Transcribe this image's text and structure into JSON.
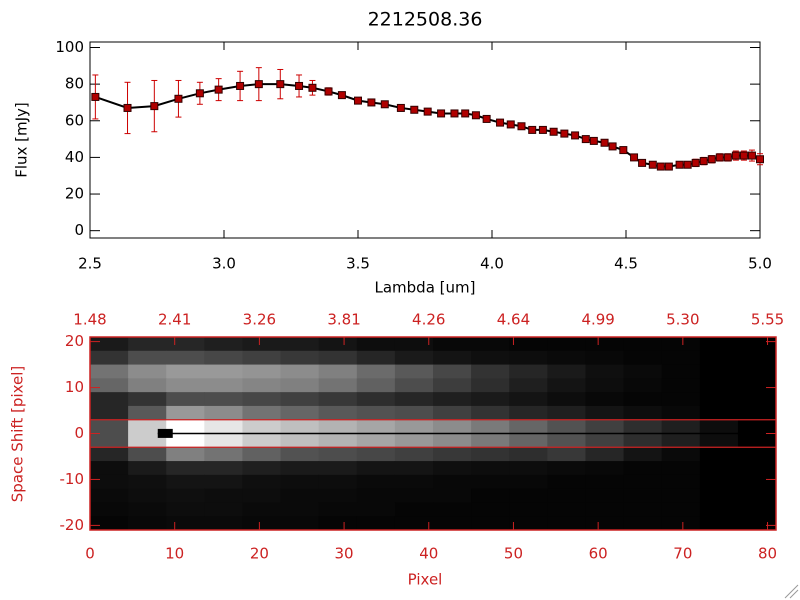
{
  "chart_data": [
    {
      "type": "line",
      "title": "2212508.36",
      "x_label": "Lambda [um]",
      "y_label": "Flux [mJy]",
      "xlim": [
        2.5,
        5.0
      ],
      "ylim": [
        -4,
        103
      ],
      "xticks": [
        2.5,
        {
          "value": 3,
          "label": "3.0"
        },
        3.5,
        {
          "value": 4,
          "label": "4.0"
        },
        4.5,
        {
          "value": 5,
          "label": "5.0"
        }
      ],
      "yticks": [
        0,
        20,
        40,
        60,
        80,
        100
      ],
      "line_color": "#000000",
      "marker_color": "#b00000",
      "error_color": "#cc0000",
      "x": [
        2.52,
        2.64,
        2.74,
        2.83,
        2.91,
        2.98,
        3.06,
        3.13,
        3.21,
        3.28,
        3.33,
        3.39,
        3.44,
        3.5,
        3.55,
        3.6,
        3.66,
        3.71,
        3.76,
        3.81,
        3.86,
        3.9,
        3.94,
        3.98,
        4.03,
        4.07,
        4.11,
        4.15,
        4.19,
        4.23,
        4.27,
        4.31,
        4.35,
        4.38,
        4.42,
        4.45,
        4.49,
        4.53,
        4.56,
        4.6,
        4.63,
        4.66,
        4.7,
        4.73,
        4.76,
        4.79,
        4.82,
        4.85,
        4.88,
        4.91,
        4.94,
        4.97,
        5.0
      ],
      "values": [
        73,
        67,
        68,
        72,
        75,
        77,
        79,
        80,
        80,
        79,
        78,
        76,
        74,
        71,
        70,
        69,
        67,
        66,
        65,
        64,
        64,
        64,
        63,
        61,
        59,
        58,
        57,
        55,
        55,
        54,
        53,
        52,
        50,
        49,
        48,
        46,
        44,
        40,
        37,
        36,
        35,
        35,
        36,
        36,
        37,
        38,
        39,
        40,
        40,
        41,
        41,
        41,
        39
      ],
      "errors": [
        12,
        14,
        14,
        10,
        6,
        6,
        8,
        9,
        8,
        6,
        4,
        2,
        1.5,
        1.5,
        1.5,
        1.5,
        1.5,
        1.5,
        1.5,
        1.5,
        1.5,
        1.5,
        1.5,
        1.5,
        1.5,
        1.5,
        1.5,
        1.5,
        1.5,
        1.5,
        1.5,
        1.5,
        1.5,
        1.5,
        1.5,
        1.5,
        1.5,
        1.5,
        1.5,
        1.5,
        1.5,
        1.5,
        1.5,
        1.5,
        2,
        2,
        2,
        2,
        2,
        2.5,
        2.5,
        3,
        3
      ]
    },
    {
      "type": "heatmap",
      "x_label": "Pixel",
      "y_label": "Space Shift [pixel]",
      "color": "#cc2222",
      "xlim": [
        0,
        81
      ],
      "ylim": [
        -21,
        21
      ],
      "xticks": [
        0,
        10,
        20,
        30,
        40,
        50,
        60,
        70,
        80
      ],
      "yticks": [
        -20,
        -10,
        0,
        10,
        20
      ],
      "x2ticks": [
        {
          "value": 0,
          "label": "1.48"
        },
        {
          "value": 10,
          "label": "2.41"
        },
        {
          "value": 20,
          "label": "3.26"
        },
        {
          "value": 30,
          "label": "3.81"
        },
        {
          "value": 40,
          "label": "4.26"
        },
        {
          "value": 50,
          "label": "4.64"
        },
        {
          "value": 60,
          "label": "4.99"
        },
        {
          "value": 70,
          "label": "5.30"
        },
        {
          "value": 80,
          "label": "5.55"
        }
      ],
      "aperture": [
        3,
        -3
      ],
      "z": [
        [
          0.1,
          0.15,
          0.15,
          0.12,
          0.1,
          0.1,
          0.08,
          0.05,
          0.05,
          0.03,
          0.03,
          0.02,
          0.02,
          0.02,
          0.02,
          0.02,
          0,
          0
        ],
        [
          0.2,
          0.3,
          0.3,
          0.28,
          0.25,
          0.22,
          0.2,
          0.15,
          0.1,
          0.08,
          0.06,
          0.05,
          0.04,
          0.03,
          0.02,
          0.02,
          0,
          0
        ],
        [
          0.45,
          0.55,
          0.6,
          0.6,
          0.58,
          0.55,
          0.5,
          0.42,
          0.35,
          0.28,
          0.2,
          0.15,
          0.1,
          0.06,
          0.04,
          0.02,
          0,
          0
        ],
        [
          0.4,
          0.5,
          0.55,
          0.55,
          0.52,
          0.5,
          0.45,
          0.38,
          0.3,
          0.24,
          0.18,
          0.12,
          0.08,
          0.05,
          0.03,
          0.02,
          0,
          0
        ],
        [
          0.15,
          0.2,
          0.3,
          0.3,
          0.28,
          0.25,
          0.22,
          0.18,
          0.15,
          0.12,
          0.1,
          0.08,
          0.05,
          0.03,
          0.02,
          0.02,
          0,
          0
        ],
        [
          0.15,
          0.35,
          0.6,
          0.55,
          0.45,
          0.4,
          0.35,
          0.32,
          0.3,
          0.25,
          0.2,
          0.15,
          0.12,
          0.08,
          0.05,
          0.03,
          0,
          0
        ],
        [
          0.3,
          0.8,
          1.0,
          0.9,
          0.8,
          0.75,
          0.7,
          0.65,
          0.6,
          0.55,
          0.48,
          0.4,
          0.32,
          0.25,
          0.18,
          0.12,
          0.05,
          0
        ],
        [
          0.3,
          0.8,
          1.0,
          0.9,
          0.8,
          0.75,
          0.7,
          0.65,
          0.6,
          0.55,
          0.48,
          0.4,
          0.32,
          0.25,
          0.18,
          0.12,
          0.05,
          0
        ],
        [
          0.15,
          0.3,
          0.5,
          0.45,
          0.38,
          0.32,
          0.3,
          0.28,
          0.25,
          0.22,
          0.2,
          0.18,
          0.22,
          0.15,
          0.08,
          0.04,
          0,
          0
        ],
        [
          0.05,
          0.1,
          0.15,
          0.15,
          0.12,
          0.1,
          0.1,
          0.08,
          0.08,
          0.06,
          0.05,
          0.05,
          0.04,
          0.03,
          0.02,
          0.02,
          0,
          0
        ],
        [
          0.05,
          0.06,
          0.08,
          0.08,
          0.06,
          0.05,
          0.05,
          0.04,
          0.04,
          0.03,
          0.03,
          0.03,
          0.02,
          0.02,
          0.02,
          0.02,
          0,
          0
        ],
        [
          0.04,
          0.05,
          0.06,
          0.05,
          0.05,
          0.04,
          0.04,
          0.03,
          0.03,
          0.03,
          0.02,
          0.02,
          0.02,
          0.02,
          0.02,
          0.02,
          0,
          0
        ],
        [
          0.03,
          0.04,
          0.05,
          0.05,
          0.04,
          0.04,
          0.03,
          0.03,
          0.02,
          0.02,
          0.02,
          0.02,
          0.02,
          0.02,
          0.02,
          0.02,
          0,
          0
        ],
        [
          0.02,
          0.03,
          0.04,
          0.04,
          0.03,
          0.03,
          0.02,
          0.02,
          0.02,
          0.02,
          0.02,
          0.02,
          0.02,
          0.02,
          0.02,
          0.02,
          0,
          0
        ]
      ]
    }
  ]
}
